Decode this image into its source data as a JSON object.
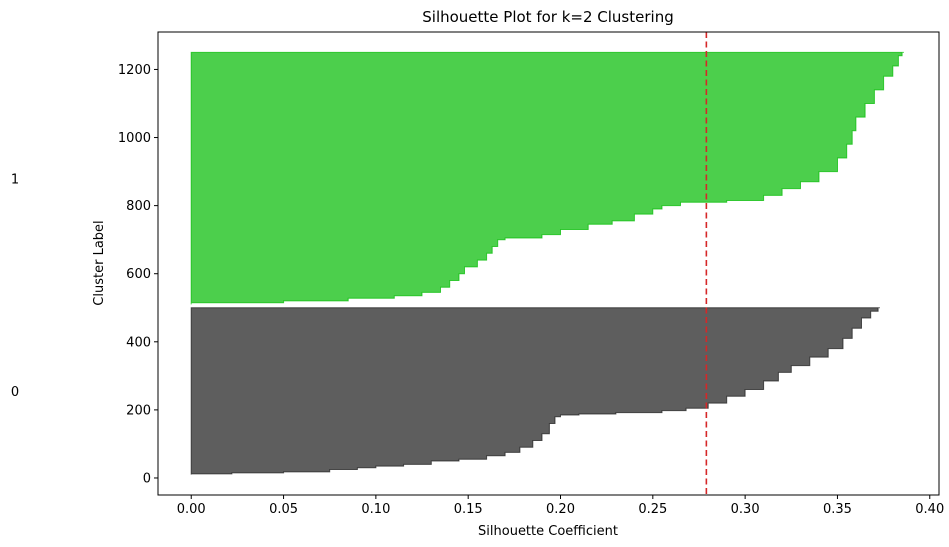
{
  "chart_data": {
    "type": "area",
    "title": "Silhouette Plot for k=2 Clustering",
    "xlabel": "Silhouette Coefficient",
    "ylabel": "Cluster Label",
    "xlim": [
      -0.018,
      0.405
    ],
    "ylim": [
      -50,
      1310
    ],
    "xticks": [
      "0.00",
      "0.05",
      "0.10",
      "0.15",
      "0.20",
      "0.25",
      "0.30",
      "0.35",
      "0.40"
    ],
    "yticks": [
      "0",
      "200",
      "400",
      "600",
      "800",
      "1000",
      "1200"
    ],
    "grid": false,
    "average_silhouette": 0.279,
    "average_line_color": "#d62728",
    "clusters": [
      {
        "label": "0",
        "label_y": 255,
        "y_range": [
          10,
          500
        ],
        "color": "#1a1a1a",
        "profile": [
          [
            10,
            0.0
          ],
          [
            12,
            0.022
          ],
          [
            15,
            0.05
          ],
          [
            18,
            0.075
          ],
          [
            25,
            0.09
          ],
          [
            30,
            0.1
          ],
          [
            35,
            0.115
          ],
          [
            40,
            0.13
          ],
          [
            50,
            0.145
          ],
          [
            55,
            0.16
          ],
          [
            65,
            0.17
          ],
          [
            75,
            0.178
          ],
          [
            90,
            0.185
          ],
          [
            110,
            0.19
          ],
          [
            130,
            0.194
          ],
          [
            160,
            0.197
          ],
          [
            180,
            0.2
          ],
          [
            185,
            0.21
          ],
          [
            188,
            0.23
          ],
          [
            192,
            0.255
          ],
          [
            198,
            0.268
          ],
          [
            205,
            0.28
          ],
          [
            220,
            0.29
          ],
          [
            240,
            0.3
          ],
          [
            260,
            0.31
          ],
          [
            285,
            0.318
          ],
          [
            310,
            0.325
          ],
          [
            330,
            0.335
          ],
          [
            355,
            0.345
          ],
          [
            380,
            0.353
          ],
          [
            410,
            0.358
          ],
          [
            440,
            0.363
          ],
          [
            470,
            0.368
          ],
          [
            490,
            0.372
          ],
          [
            500,
            0.373
          ]
        ]
      },
      {
        "label": "1",
        "label_y": 880,
        "y_range": [
          510,
          1250
        ],
        "color": "#00bb00",
        "profile": [
          [
            510,
            0.0
          ],
          [
            515,
            0.05
          ],
          [
            520,
            0.085
          ],
          [
            528,
            0.11
          ],
          [
            535,
            0.125
          ],
          [
            545,
            0.135
          ],
          [
            560,
            0.14
          ],
          [
            580,
            0.145
          ],
          [
            600,
            0.148
          ],
          [
            620,
            0.155
          ],
          [
            640,
            0.16
          ],
          [
            660,
            0.163
          ],
          [
            680,
            0.166
          ],
          [
            700,
            0.17
          ],
          [
            705,
            0.19
          ],
          [
            715,
            0.2
          ],
          [
            730,
            0.215
          ],
          [
            745,
            0.228
          ],
          [
            755,
            0.24
          ],
          [
            775,
            0.25
          ],
          [
            790,
            0.255
          ],
          [
            800,
            0.265
          ],
          [
            810,
            0.29
          ],
          [
            815,
            0.31
          ],
          [
            830,
            0.32
          ],
          [
            850,
            0.33
          ],
          [
            870,
            0.34
          ],
          [
            900,
            0.35
          ],
          [
            940,
            0.355
          ],
          [
            980,
            0.358
          ],
          [
            1020,
            0.36
          ],
          [
            1060,
            0.365
          ],
          [
            1100,
            0.37
          ],
          [
            1140,
            0.375
          ],
          [
            1180,
            0.38
          ],
          [
            1210,
            0.383
          ],
          [
            1240,
            0.385
          ],
          [
            1250,
            0.386
          ]
        ]
      }
    ]
  }
}
